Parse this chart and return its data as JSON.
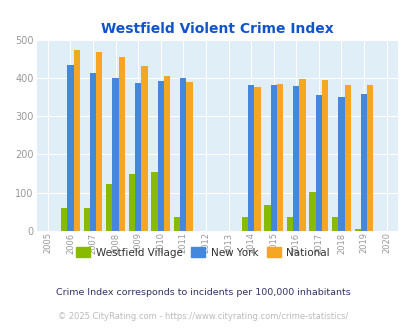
{
  "title": "Westfield Violent Crime Index",
  "all_years": [
    2005,
    2006,
    2007,
    2008,
    2009,
    2010,
    2011,
    2012,
    2013,
    2014,
    2015,
    2016,
    2017,
    2018,
    2019,
    2020
  ],
  "data_years": [
    2006,
    2007,
    2008,
    2009,
    2010,
    2011,
    2014,
    2015,
    2016,
    2017,
    2018,
    2019
  ],
  "westfield": [
    60,
    60,
    122,
    150,
    153,
    37,
    37,
    68,
    37,
    103,
    37,
    5
  ],
  "newyork": [
    433,
    413,
    399,
    387,
    393,
    400,
    382,
    381,
    378,
    356,
    350,
    357
  ],
  "national": [
    472,
    467,
    455,
    431,
    405,
    388,
    377,
    383,
    397,
    394,
    381,
    381
  ],
  "color_westfield": "#88bb00",
  "color_newyork": "#4488dd",
  "color_national": "#f5a623",
  "bg_color": "#e0eef8",
  "ylim": [
    0,
    500
  ],
  "yticks": [
    0,
    100,
    200,
    300,
    400,
    500
  ],
  "legend_labels": [
    "Westfield Village",
    "New York",
    "National"
  ],
  "footnote1": "Crime Index corresponds to incidents per 100,000 inhabitants",
  "footnote2": "© 2025 CityRating.com - https://www.cityrating.com/crime-statistics/",
  "footnote2_color": "#bbbbbb",
  "footnote2_link_color": "#4488dd",
  "title_color": "#1155cc",
  "tick_color": "#999999",
  "bar_width": 0.28
}
